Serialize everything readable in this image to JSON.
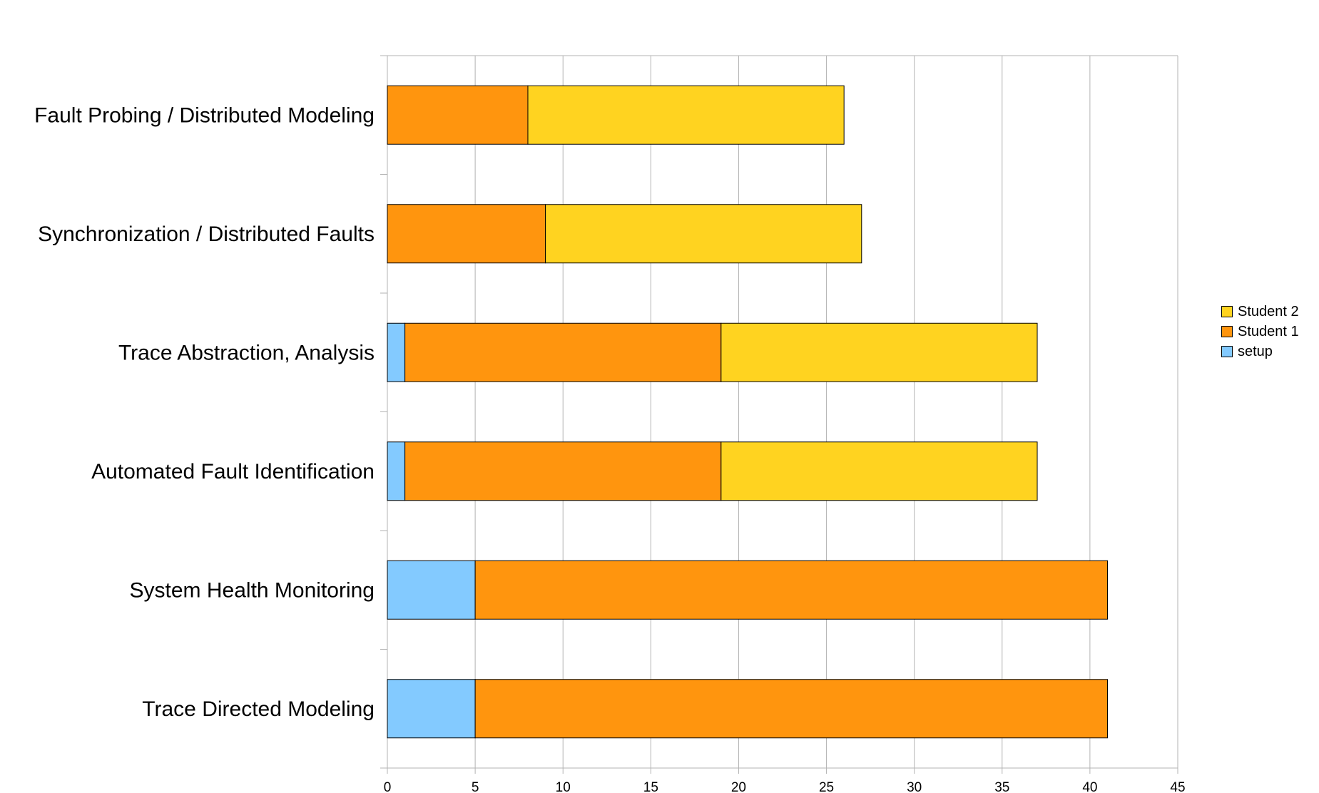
{
  "chart_data": {
    "type": "bar",
    "orientation": "horizontal",
    "stacked": true,
    "categories": [
      "Fault Probing / Distributed Modeling",
      "Synchronization / Distributed Faults",
      "Trace Abstraction, Analysis",
      "Automated Fault Identification",
      "System Health Monitoring",
      "Trace Directed Modeling"
    ],
    "series": [
      {
        "name": "setup",
        "color": "#83caff",
        "values": [
          0,
          0,
          1,
          1,
          5,
          5
        ]
      },
      {
        "name": "Student 1",
        "color": "#ff950e",
        "values": [
          8,
          9,
          18,
          18,
          36,
          36
        ]
      },
      {
        "name": "Student 2",
        "color": "#ffd320",
        "values": [
          18,
          18,
          18,
          18,
          0,
          0
        ]
      }
    ],
    "xlim": [
      0,
      45
    ],
    "x_ticks": [
      "0",
      "5",
      "10",
      "15",
      "20",
      "25",
      "30",
      "35",
      "40",
      "45"
    ],
    "grid": true,
    "legend_position": "right",
    "legend_order": [
      "Student 2",
      "Student 1",
      "setup"
    ]
  }
}
